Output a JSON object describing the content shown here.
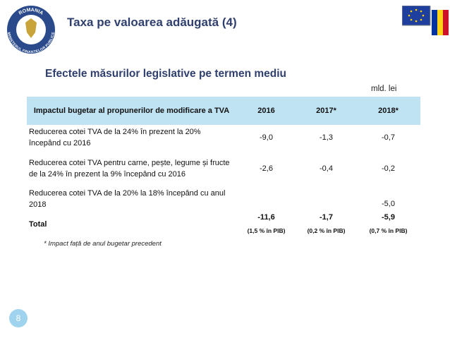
{
  "header": {
    "title": "Taxa pe valoarea adăugată (4)",
    "logo_top": "ROMANIA",
    "logo_bottom": "MINISTERUL FINANTELOR PUBLICE"
  },
  "subtitle": "Efectele măsurilor legislative pe termen mediu",
  "unit": "mld. lei",
  "table": {
    "columns": [
      "Impactul bugetar al propunerilor de modificare a TVA",
      "2016",
      "2017*",
      "2018*"
    ],
    "rows": [
      {
        "label": "Reducerea cotei TVA de la 24% în prezent la 20% începând cu 2016",
        "values": [
          "-9,0",
          "-1,3",
          "-0,7"
        ]
      },
      {
        "label": "Reducerea cotei TVA pentru carne, pește, legume și fructe de la 24% în prezent la 9% începând cu 2016",
        "values": [
          "-2,6",
          "-0,4",
          "-0,2"
        ]
      },
      {
        "label": "Reducerea cotei TVA de la 20% la 18% începând cu anul 2018",
        "values": [
          null,
          null,
          "-5,0"
        ]
      }
    ],
    "total": {
      "label": "Total",
      "values": [
        "-11,6",
        "-1,7",
        "-5,9"
      ],
      "notes": [
        "(1,5 % în PIB)",
        "(0,2 % în PIB)",
        "(0,7 % în PIB)"
      ]
    }
  },
  "footnote": "* Impact față de anul bugetar precedent",
  "page_number": "8"
}
